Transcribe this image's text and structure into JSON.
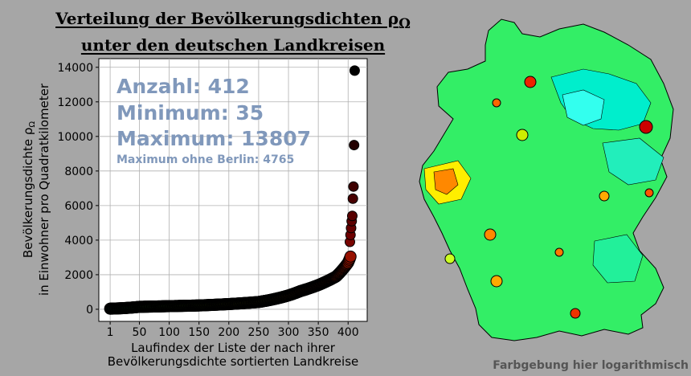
{
  "title_lines": [
    "Verteilung der Bevölkerungsdichten ρ",
    "unter den deutschen Landkreisen"
  ],
  "title_subscript": "Ω",
  "map_note": "Farbgebung hier logarithmisch",
  "chart_data": {
    "type": "scatter",
    "title": "Verteilung der Bevölkerungsdichten ρΩ unter den deutschen Landkreisen",
    "xlabel": [
      "Laufindex der Liste der nach ihrer",
      "Bevölkerungsdichte sortierten Landkreise"
    ],
    "ylabel": [
      "Bevölkerungsdichte ρΩ",
      "in Einwohner pro Quadratkilometer"
    ],
    "xlim": [
      -18,
      432
    ],
    "ylim": [
      -700,
      14500
    ],
    "xticks": [
      1,
      50,
      100,
      150,
      200,
      250,
      300,
      350,
      400
    ],
    "yticks": [
      0,
      2000,
      4000,
      6000,
      8000,
      10000,
      12000,
      14000
    ],
    "grid": true,
    "annotations": {
      "count": "Anzahl: 412",
      "minimum": "Minimum: 35",
      "maximum": "Maximum: 13807",
      "maximum_without_berlin": "Maximum ohne Berlin: 4765"
    },
    "count": 412,
    "min": 35,
    "max": 13807,
    "curve_anchors": [
      [
        1,
        35
      ],
      [
        50,
        140
      ],
      [
        100,
        180
      ],
      [
        150,
        220
      ],
      [
        200,
        300
      ],
      [
        250,
        420
      ],
      [
        300,
        800
      ],
      [
        320,
        1050
      ],
      [
        350,
        1400
      ],
      [
        380,
        1900
      ],
      [
        400,
        2700
      ],
      [
        403,
        2950
      ],
      [
        404,
        3050
      ]
    ],
    "outliers": [
      [
        403,
        3900
      ],
      [
        404,
        4300
      ],
      [
        405,
        4700
      ],
      [
        406,
        5100
      ],
      [
        407,
        5400
      ],
      [
        408,
        6400
      ],
      [
        409,
        7100
      ],
      [
        410,
        9500
      ],
      [
        411,
        13807
      ]
    ]
  },
  "colors": {
    "background": "#a6a6a6",
    "annotation_text": "#8098bb",
    "gradient": [
      "#00f0c0",
      "#00ff40",
      "#ffff00",
      "#ff4000",
      "#700000",
      "#000000"
    ]
  }
}
